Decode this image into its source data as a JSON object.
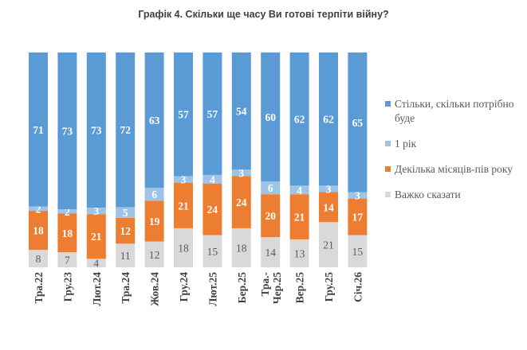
{
  "chart_data": {
    "type": "bar",
    "stacked": true,
    "title": "Графік 4. Скільки ще часу Ви готові терпіти війну?",
    "categories": [
      "Тра.22",
      "Гру.23",
      "Лют.24",
      "Тра.24",
      "Жов.24",
      "Гру.24",
      "Лют.25",
      "Бер.25",
      "Тра.-Чер.25",
      "Вер.25",
      "Гру.25",
      "Січ.26"
    ],
    "series": [
      {
        "name": "Важко сказати",
        "color": "#D9D9D9",
        "values": [
          8,
          7,
          4,
          11,
          12,
          18,
          15,
          18,
          14,
          13,
          21,
          15
        ]
      },
      {
        "name": "Декілька місяців-пів року",
        "color": "#ED7D31",
        "values": [
          18,
          18,
          21,
          12,
          19,
          21,
          24,
          24,
          20,
          21,
          14,
          17
        ]
      },
      {
        "name": "1 рік",
        "color": "#9DC3E6",
        "values": [
          2,
          2,
          3,
          5,
          6,
          3,
          4,
          3,
          6,
          4,
          3,
          3
        ]
      },
      {
        "name": "Стільки, скільки потрібно буде",
        "color": "#5B9BD5",
        "values": [
          71,
          73,
          73,
          72,
          63,
          57,
          57,
          54,
          60,
          62,
          62,
          65
        ]
      }
    ],
    "legend_order": [
      "Стільки, скільки потрібно буде",
      "1 рік",
      "Декілька місяців-пів року",
      "Важко сказати"
    ],
    "legend_position": "right",
    "grid": false
  }
}
